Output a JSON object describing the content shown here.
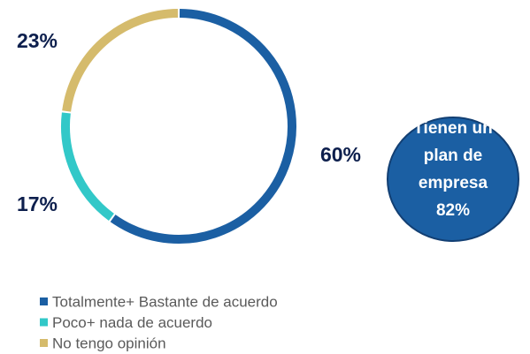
{
  "chart_data": {
    "type": "donut",
    "categories": [
      "Totalmente+ Bastante de acuerdo",
      "Poco+ nada de acuerdo",
      "No tengo opinión"
    ],
    "values": [
      60,
      17,
      23
    ],
    "value_labels": [
      "60%",
      "17%",
      "23%"
    ],
    "colors": [
      "#1b5fa3",
      "#32c8c8",
      "#d5bb6c"
    ],
    "annotation": [
      "Tienen un",
      "plan de",
      "empresa",
      "82%"
    ],
    "annotation_color": "#1b5fa3"
  }
}
